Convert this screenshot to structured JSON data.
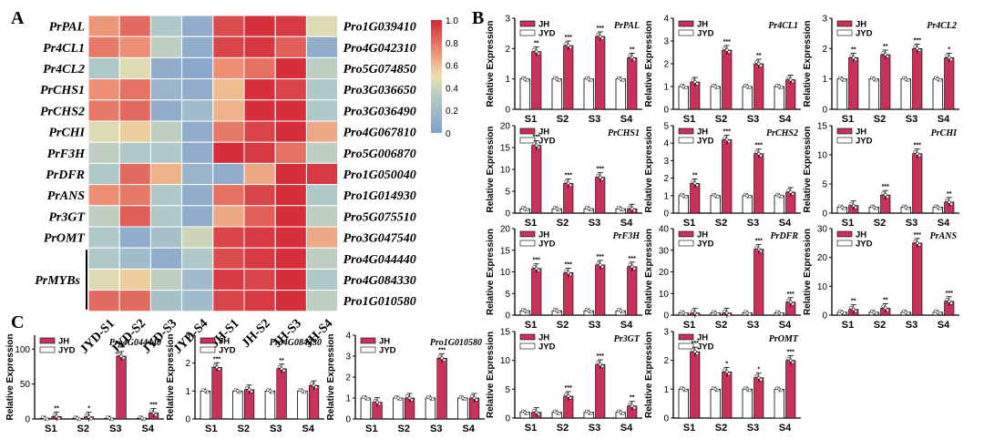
{
  "panels": {
    "A": "A",
    "B": "B",
    "C": "C"
  },
  "legend_jh": "JH",
  "legend_jyd": "JYD",
  "colors": {
    "jh": "#C8325A",
    "jyd": "#ffffff",
    "axis": "#000000"
  },
  "heatmap": {
    "columns": [
      "JYD-S1",
      "JYD-S2",
      "JYD-S3",
      "JYD-S4",
      "JH-S1",
      "JH-S2",
      "JH-S3",
      "JH-S4"
    ],
    "row_labels_left": [
      "PrPAL",
      "Pr4CL1",
      "Pr4CL2",
      "PrCHS1",
      "PrCHS2",
      "PrCHI",
      "PrF3H",
      "PrDFR",
      "PrANS",
      "Pr3GT",
      "PrOMT"
    ],
    "group_label": "PrMYBs",
    "row_labels_right": [
      "Pro1G039410",
      "Pro4G042310",
      "Pro5G074850",
      "Pro3G036650",
      "Pro3G036490",
      "Pro4G067810",
      "Pro5G006870",
      "Pro1G050040",
      "Pro1G014930",
      "Pro5G075510",
      "Pro3G047540",
      "Pro4G044440",
      "Pro4G084330",
      "Pro1G010580"
    ],
    "values": [
      [
        0.7,
        0.82,
        0.3,
        0.1,
        0.9,
        0.98,
        0.95,
        0.45
      ],
      [
        0.78,
        0.72,
        0.35,
        0.1,
        0.92,
        0.96,
        0.85,
        0.1
      ],
      [
        0.3,
        0.45,
        0.1,
        0.05,
        0.72,
        0.8,
        0.98,
        0.35
      ],
      [
        0.72,
        0.8,
        0.15,
        0.1,
        0.6,
        0.98,
        0.92,
        0.3
      ],
      [
        0.78,
        0.82,
        0.1,
        0.2,
        0.62,
        0.98,
        0.98,
        0.3
      ],
      [
        0.45,
        0.55,
        0.35,
        0.1,
        0.78,
        0.92,
        0.98,
        0.65
      ],
      [
        0.35,
        0.3,
        0.3,
        0.1,
        0.98,
        0.95,
        0.8,
        0.35
      ],
      [
        0.3,
        0.82,
        0.62,
        0.15,
        0.1,
        0.65,
        0.98,
        0.95
      ],
      [
        0.72,
        0.78,
        0.3,
        0.1,
        0.8,
        0.92,
        0.98,
        0.3
      ],
      [
        0.35,
        0.85,
        0.3,
        0.1,
        0.65,
        0.85,
        0.98,
        0.35
      ],
      [
        0.3,
        0.1,
        0.25,
        0.4,
        0.92,
        0.95,
        0.98,
        0.65
      ],
      [
        0.3,
        0.2,
        0.1,
        0.3,
        0.9,
        0.95,
        0.98,
        0.35
      ],
      [
        0.45,
        0.55,
        0.35,
        0.2,
        0.95,
        0.92,
        0.98,
        0.3
      ],
      [
        0.82,
        0.82,
        0.25,
        0.2,
        0.92,
        0.95,
        0.98,
        0.35
      ]
    ],
    "colorbar": {
      "ticks": [
        "1.0",
        "0.8",
        "0.6",
        "0.4",
        "0.2",
        "0"
      ]
    }
  },
  "chart_data": [
    {
      "type": "bar",
      "panel": "B",
      "title": "PrPAL",
      "ylabel": "Relative Expression",
      "categories": [
        "S1",
        "S2",
        "S3",
        "S4"
      ],
      "ylim": [
        0,
        3
      ],
      "yticks": [
        "0",
        "1",
        "2",
        "3"
      ],
      "series": [
        {
          "name": "JYD",
          "values": [
            1.0,
            1.0,
            1.0,
            1.0
          ]
        },
        {
          "name": "JH",
          "values": [
            1.9,
            2.1,
            2.4,
            1.7
          ]
        }
      ],
      "significance": [
        "**",
        "***",
        "***",
        "**"
      ]
    },
    {
      "type": "bar",
      "panel": "B",
      "title": "Pr4CL1",
      "ylabel": "Relative Expression",
      "categories": [
        "S1",
        "S2",
        "S3",
        "S4"
      ],
      "ylim": [
        0,
        4
      ],
      "yticks": [
        "0",
        "1",
        "2",
        "3",
        "4"
      ],
      "series": [
        {
          "name": "JYD",
          "values": [
            1.0,
            1.0,
            1.0,
            1.0
          ]
        },
        {
          "name": "JH",
          "values": [
            1.2,
            2.6,
            2.0,
            1.3
          ]
        }
      ],
      "significance": [
        "",
        "***",
        "**",
        ""
      ]
    },
    {
      "type": "bar",
      "panel": "B",
      "title": "Pr4CL2",
      "ylabel": "Relative Expression",
      "categories": [
        "S1",
        "S2",
        "S3",
        "S4"
      ],
      "ylim": [
        0,
        3
      ],
      "yticks": [
        "0",
        "1",
        "2",
        "3"
      ],
      "series": [
        {
          "name": "JYD",
          "values": [
            1.0,
            1.0,
            1.0,
            1.0
          ]
        },
        {
          "name": "JH",
          "values": [
            1.7,
            1.8,
            2.0,
            1.7
          ]
        }
      ],
      "significance": [
        "**",
        "**",
        "***",
        "*"
      ]
    },
    {
      "type": "bar",
      "panel": "B",
      "title": "PrCHS1",
      "ylabel": "Relative Expression",
      "categories": [
        "S1",
        "S2",
        "S3",
        "S4"
      ],
      "ylim": [
        0,
        20
      ],
      "yticks": [
        "0",
        "5",
        "10",
        "15",
        "20"
      ],
      "series": [
        {
          "name": "JYD",
          "values": [
            1.0,
            1.0,
            1.0,
            1.0
          ]
        },
        {
          "name": "JH",
          "values": [
            15.5,
            6.8,
            8.2,
            1.0
          ]
        }
      ],
      "significance": [
        "***",
        "***",
        "***",
        ""
      ]
    },
    {
      "type": "bar",
      "panel": "B",
      "title": "PrCHS2",
      "ylabel": "Relative Expression",
      "categories": [
        "S1",
        "S2",
        "S3",
        "S4"
      ],
      "ylim": [
        0,
        5
      ],
      "yticks": [
        "0",
        "1",
        "2",
        "3",
        "4",
        "5"
      ],
      "series": [
        {
          "name": "JYD",
          "values": [
            1.0,
            1.0,
            1.0,
            1.0
          ]
        },
        {
          "name": "JH",
          "values": [
            1.7,
            4.2,
            3.4,
            1.2
          ]
        }
      ],
      "significance": [
        "**",
        "***",
        "***",
        ""
      ]
    },
    {
      "type": "bar",
      "panel": "B",
      "title": "PrCHI",
      "ylabel": "Relative Expression",
      "categories": [
        "S1",
        "S2",
        "S3",
        "S4"
      ],
      "ylim": [
        0,
        15
      ],
      "yticks": [
        "0",
        "5",
        "10",
        "15"
      ],
      "series": [
        {
          "name": "JYD",
          "values": [
            1.0,
            1.0,
            1.0,
            1.0
          ]
        },
        {
          "name": "JH",
          "values": [
            1.3,
            3.1,
            10.2,
            1.9
          ]
        }
      ],
      "significance": [
        "",
        "***",
        "***",
        "**"
      ]
    },
    {
      "type": "bar",
      "panel": "B",
      "title": "PrF3H",
      "ylabel": "Relative Expression",
      "categories": [
        "S1",
        "S2",
        "S3",
        "S4"
      ],
      "ylim": [
        0,
        20
      ],
      "yticks": [
        "0",
        "5",
        "10",
        "15",
        "20"
      ],
      "series": [
        {
          "name": "JYD",
          "values": [
            1.0,
            1.0,
            1.0,
            1.0
          ]
        },
        {
          "name": "JH",
          "values": [
            10.8,
            9.8,
            11.6,
            11.2
          ]
        }
      ],
      "significance": [
        "***",
        "***",
        "***",
        "***"
      ]
    },
    {
      "type": "bar",
      "panel": "B",
      "title": "PrDFR",
      "ylabel": "Relative Expression",
      "categories": [
        "S1",
        "S2",
        "S3",
        "S4"
      ],
      "ylim": [
        0,
        40
      ],
      "yticks": [
        "0",
        "10",
        "20",
        "30",
        "40"
      ],
      "series": [
        {
          "name": "JYD",
          "values": [
            1.0,
            1.0,
            1.0,
            1.0
          ]
        },
        {
          "name": "JH",
          "values": [
            1.0,
            1.0,
            30.5,
            6.0
          ]
        }
      ],
      "significance": [
        "",
        "",
        "***",
        "***"
      ]
    },
    {
      "type": "bar",
      "panel": "B",
      "title": "PrANS",
      "ylabel": "Relative Expression",
      "categories": [
        "S1",
        "S2",
        "S3",
        "S4"
      ],
      "ylim": [
        0,
        30
      ],
      "yticks": [
        "0",
        "10",
        "20",
        "30"
      ],
      "series": [
        {
          "name": "JYD",
          "values": [
            1.0,
            1.0,
            1.0,
            1.0
          ]
        },
        {
          "name": "JH",
          "values": [
            2.0,
            2.4,
            25.0,
            4.8
          ]
        }
      ],
      "significance": [
        "**",
        "**",
        "***",
        "***"
      ]
    },
    {
      "type": "bar",
      "panel": "B",
      "title": "Pr3GT",
      "ylabel": "Relative Expression",
      "categories": [
        "S1",
        "S2",
        "S3",
        "S4"
      ],
      "ylim": [
        0,
        15
      ],
      "yticks": [
        "0",
        "5",
        "10",
        "15"
      ],
      "series": [
        {
          "name": "JYD",
          "values": [
            1.0,
            1.0,
            1.0,
            1.0
          ]
        },
        {
          "name": "JH",
          "values": [
            1.0,
            3.8,
            9.3,
            2.1
          ]
        }
      ],
      "significance": [
        "",
        "***",
        "***",
        "**"
      ]
    },
    {
      "type": "bar",
      "panel": "B",
      "title": "PrOMT",
      "ylabel": "Relative Expression",
      "categories": [
        "S1",
        "S2",
        "S3",
        "S4"
      ],
      "ylim": [
        0,
        3
      ],
      "yticks": [
        "0",
        "1",
        "2",
        "3"
      ],
      "series": [
        {
          "name": "JYD",
          "values": [
            1.0,
            1.0,
            1.0,
            1.0
          ]
        },
        {
          "name": "JH",
          "values": [
            2.3,
            1.6,
            1.4,
            2.0
          ]
        }
      ],
      "significance": [
        "***",
        "*",
        "*",
        "***"
      ]
    },
    {
      "type": "bar",
      "panel": "C",
      "title": "Pro4G044440",
      "ylabel": "Relative Expression",
      "categories": [
        "S1",
        "S2",
        "S3",
        "S4"
      ],
      "ylim": [
        0,
        120
      ],
      "yticks": [
        "0",
        "50",
        "100"
      ],
      "series": [
        {
          "name": "JYD",
          "values": [
            1.0,
            1.0,
            1.0,
            1.0
          ]
        },
        {
          "name": "JH",
          "values": [
            3.5,
            3.0,
            90,
            8.5
          ]
        }
      ],
      "significance": [
        "**",
        "*",
        "***",
        "***"
      ]
    },
    {
      "type": "bar",
      "panel": "C",
      "title": "Pro4G084330",
      "ylabel": "Relative Expression",
      "categories": [
        "S1",
        "S2",
        "S3",
        "S4"
      ],
      "ylim": [
        0,
        3
      ],
      "yticks": [
        "0",
        "1",
        "2",
        "3"
      ],
      "series": [
        {
          "name": "JYD",
          "values": [
            1.0,
            1.0,
            1.0,
            1.0
          ]
        },
        {
          "name": "JH",
          "values": [
            1.85,
            1.05,
            1.8,
            1.2
          ]
        }
      ],
      "significance": [
        "***",
        "",
        "**",
        ""
      ]
    },
    {
      "type": "bar",
      "panel": "C",
      "title": "Pro1G010580",
      "ylabel": "Relative Expression",
      "categories": [
        "S1",
        "S2",
        "S3",
        "S4"
      ],
      "ylim": [
        0,
        4
      ],
      "yticks": [
        "0",
        "1",
        "2",
        "3",
        "4"
      ],
      "series": [
        {
          "name": "JYD",
          "values": [
            1.0,
            1.0,
            1.0,
            1.0
          ]
        },
        {
          "name": "JH",
          "values": [
            0.8,
            1.0,
            2.9,
            1.0
          ]
        }
      ],
      "significance": [
        "",
        "",
        "***",
        ""
      ]
    }
  ]
}
